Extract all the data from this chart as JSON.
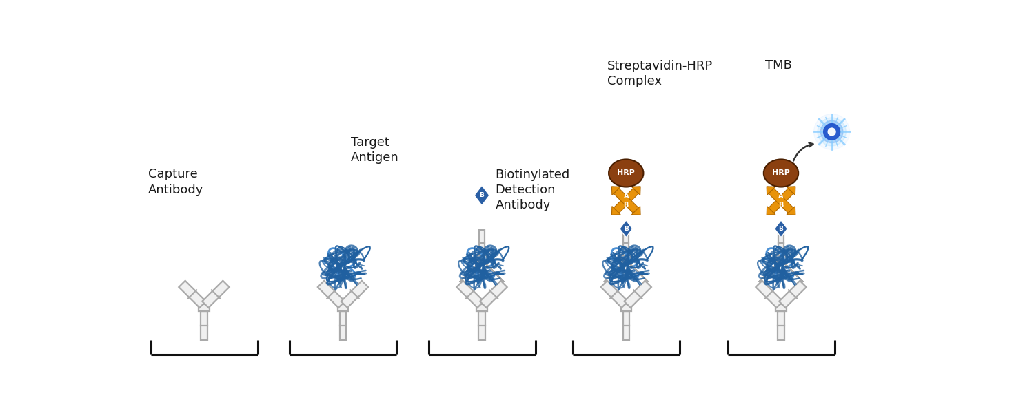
{
  "bg_color": "#ffffff",
  "ab_color": "#aaaaaa",
  "antigen_color_fill": "#4a8fd4",
  "antigen_color_line": "#2060a0",
  "biotin_color": "#2a5fa5",
  "strep_color": "#e8930a",
  "hrp_color": "#8B4010",
  "tmb_fill": "#4169E1",
  "tmb_glow": "#87CEFA",
  "bracket_color": "#111111",
  "text_color": "#1a1a1a",
  "font_size": 13,
  "labels": [
    "Capture\nAntibody",
    "Target\nAntigen",
    "Biotinylated\nDetection\nAntibody",
    "Streptavidin-HRP\nComplex",
    "TMB"
  ]
}
